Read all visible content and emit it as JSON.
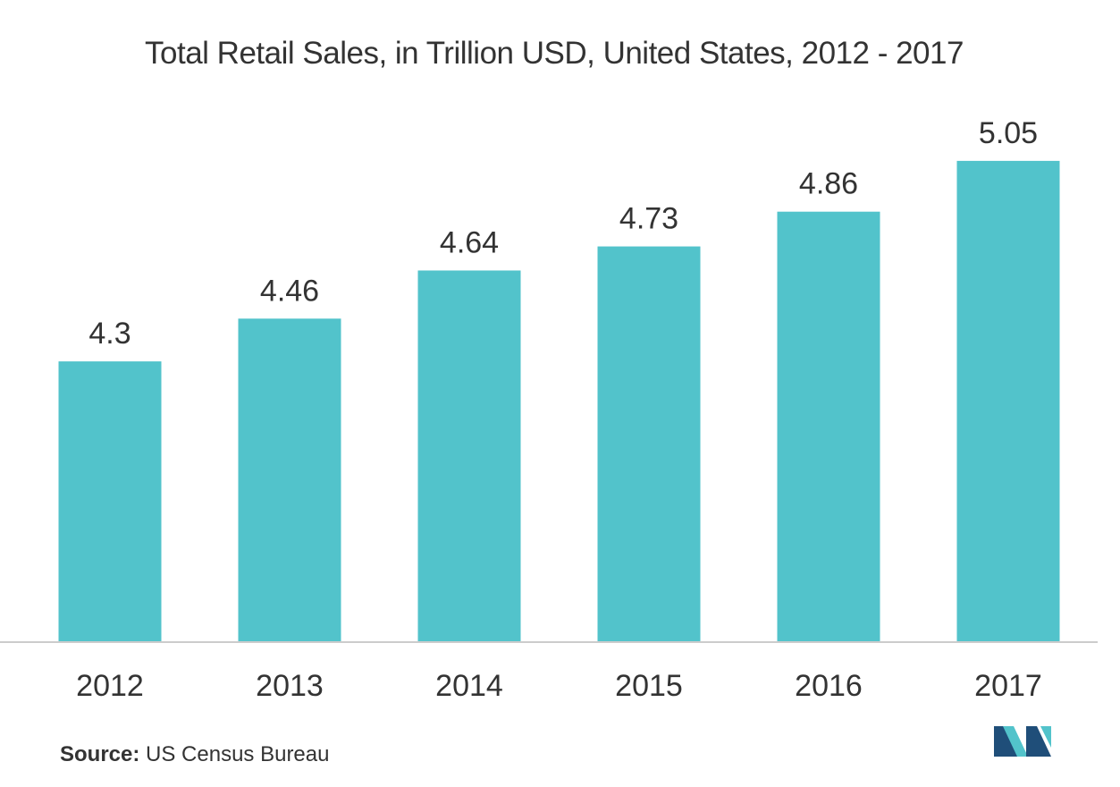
{
  "chart_data": {
    "type": "bar",
    "title": "Total Retail Sales, in Trillion USD, United States, 2012 - 2017",
    "categories": [
      "2012",
      "2013",
      "2014",
      "2015",
      "2016",
      "2017"
    ],
    "values": [
      4.3,
      4.46,
      4.64,
      4.73,
      4.86,
      5.05
    ],
    "value_labels": [
      "4.3",
      "4.46",
      "4.64",
      "4.73",
      "4.86",
      "5.05"
    ],
    "xlabel": "",
    "ylabel": "",
    "ylim": [
      3.25,
      5.15
    ],
    "grid": false,
    "legend": "none"
  },
  "colors": {
    "bar": "#52c3cb",
    "axis": "#cccccc",
    "text": "#333333",
    "logo_dark": "#1f4e79",
    "logo_light": "#52c3cb"
  },
  "source": {
    "key": "Source:",
    "text": "US Census Bureau"
  },
  "logo": {
    "icon": "mordor-logo-icon"
  }
}
